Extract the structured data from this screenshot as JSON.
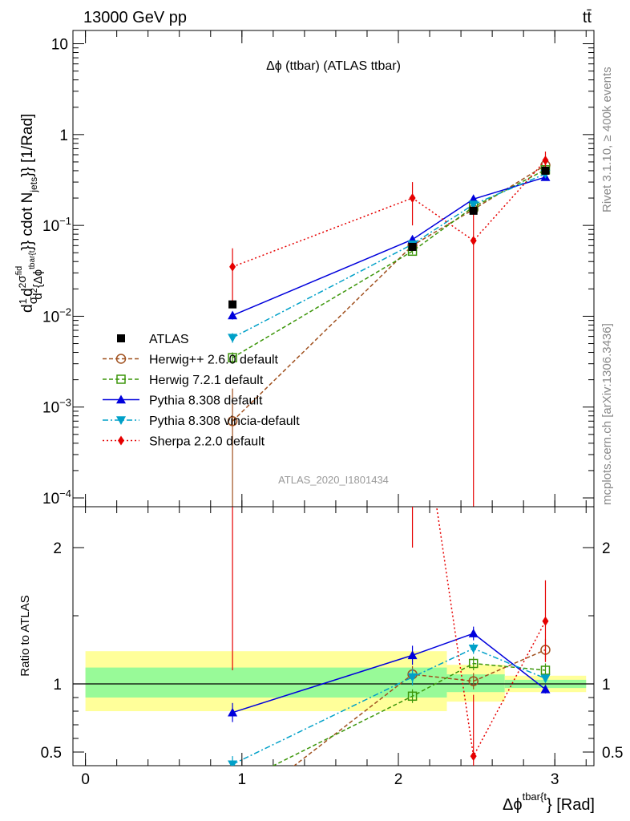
{
  "header": {
    "left": "13000 GeV pp",
    "right": "tt̄",
    "side_top": "Rivet 3.1.10, ≥ 400k events",
    "side_bottom": "mcplots.cern.ch [arXiv:1306.3436]"
  },
  "chart_data": {
    "type": "line",
    "title": "Δϕ (ttbar) (ATLAS ttbar)",
    "watermark": "ATLAS_2020_I1801434",
    "ylabel_parts": {
      "a": "d",
      "b": "1",
      "c": "σ",
      "d": "d",
      "e": "2",
      "f": "σ",
      "g": "fid",
      "h": "d",
      "i": "2",
      "j": "{Δϕ",
      "k": "tbar{t",
      "l": "}} cdot N",
      "m": "jets",
      "n": "}} [1/Rad]"
    },
    "xlabel_parts": {
      "main": "Δϕ",
      "sup": "tbar{t",
      "tail": "} [Rad]"
    },
    "ratio_ylabel": "Ratio to ATLAS",
    "xlim": [
      -0.08,
      3.25
    ],
    "ylim": [
      8e-05,
      14
    ],
    "ylog": true,
    "ratio_ylim": [
      0.4,
      2.3
    ],
    "x_ticks": [
      0,
      1,
      2,
      3
    ],
    "x_tick_labels": [
      "0",
      "1",
      "2",
      "3"
    ],
    "y_ticks": [
      0.0001,
      0.001,
      0.01,
      0.1,
      1,
      10
    ],
    "y_tick_labels": [
      {
        "base": "10",
        "exp": "−4"
      },
      {
        "base": "10",
        "exp": "−3"
      },
      {
        "base": "10",
        "exp": "−2"
      },
      {
        "base": "10",
        "exp": "−1"
      },
      {
        "base": "1",
        "exp": ""
      },
      {
        "base": "10",
        "exp": ""
      }
    ],
    "ratio_ticks": [
      0.5,
      1,
      2
    ],
    "ratio_tick_labels": [
      "0.5",
      "1",
      "2"
    ],
    "bands": [
      {
        "x0": 0.0,
        "x1": 2.31,
        "green": [
          0.9,
          1.12
        ],
        "yellow": [
          0.8,
          1.24
        ]
      },
      {
        "x0": 2.31,
        "x1": 2.68,
        "green": [
          0.94,
          1.07
        ],
        "yellow": [
          0.87,
          1.14
        ]
      },
      {
        "x0": 2.68,
        "x1": 3.2,
        "green": [
          0.97,
          1.03
        ],
        "yellow": [
          0.94,
          1.06
        ]
      }
    ],
    "data": {
      "name": "ATLAS",
      "x": [
        0.94,
        2.09,
        2.48,
        2.94
      ],
      "y": [
        0.0135,
        0.058,
        0.145,
        0.4
      ]
    },
    "series": [
      {
        "name": "Herwig++ 2.6.0 default",
        "color": "#a0501e",
        "dash": "5,3",
        "marker": "circle-open",
        "x": [
          0.94,
          2.09,
          2.48,
          2.94
        ],
        "y": [
          0.0007,
          0.06,
          0.15,
          0.46
        ],
        "ratio": [
          0.05,
          1.07,
          1.02,
          1.25
        ],
        "yerr": [
          0.0009,
          0.006,
          0.01,
          0.04
        ],
        "rerr": [
          0.06,
          0.06,
          0.06,
          0.08
        ]
      },
      {
        "name": "Herwig 7.2.1 default",
        "color": "#3c960a",
        "dash": "5,3",
        "marker": "square-open",
        "x": [
          0.94,
          2.09,
          2.48,
          2.94
        ],
        "y": [
          0.0035,
          0.052,
          0.16,
          0.41
        ],
        "ratio": [
          0.25,
          0.91,
          1.15,
          1.1
        ],
        "yerr": [
          0.0005,
          0.004,
          0.01,
          0.03
        ],
        "rerr": [
          0.04,
          0.05,
          0.05,
          0.05
        ]
      },
      {
        "name": "Pythia 8.308 default",
        "color": "#0000dc",
        "dash": "",
        "marker": "triangle-up",
        "x": [
          0.94,
          2.09,
          2.48,
          2.94
        ],
        "y": [
          0.0102,
          0.07,
          0.195,
          0.34
        ],
        "ratio": [
          0.79,
          1.21,
          1.37,
          0.96
        ],
        "yerr": [
          0.001,
          0.005,
          0.012,
          0.02
        ],
        "rerr": [
          0.07,
          0.07,
          0.05,
          0.03
        ]
      },
      {
        "name": "Pythia 8.308 vincia-default",
        "color": "#00a0c8",
        "dash": "7,3,2,3",
        "marker": "triangle-down",
        "x": [
          0.94,
          2.09,
          2.48,
          2.94
        ],
        "y": [
          0.0058,
          0.062,
          0.17,
          0.37
        ],
        "ratio": [
          0.41,
          1.05,
          1.26,
          1.04
        ],
        "yerr": [
          0.0007,
          0.005,
          0.01,
          0.02
        ],
        "rerr": [
          0.06,
          0.06,
          0.04,
          0.03
        ]
      },
      {
        "name": "Sherpa 2.2.0 default",
        "color": "#e60000",
        "dash": "2,3",
        "marker": "diamond",
        "x": [
          0.94,
          2.09,
          2.48,
          2.94
        ],
        "y": [
          0.035,
          0.2,
          0.068,
          0.52
        ],
        "ratio": [
          2.6,
          3.5,
          0.47,
          1.46
        ],
        "yerr": [
          0.021,
          0.1,
          0.0681,
          0.13
        ],
        "rerr": [
          1.5,
          1.5,
          0.45,
          0.3
        ]
      }
    ],
    "legend_placement": "middle-left"
  }
}
